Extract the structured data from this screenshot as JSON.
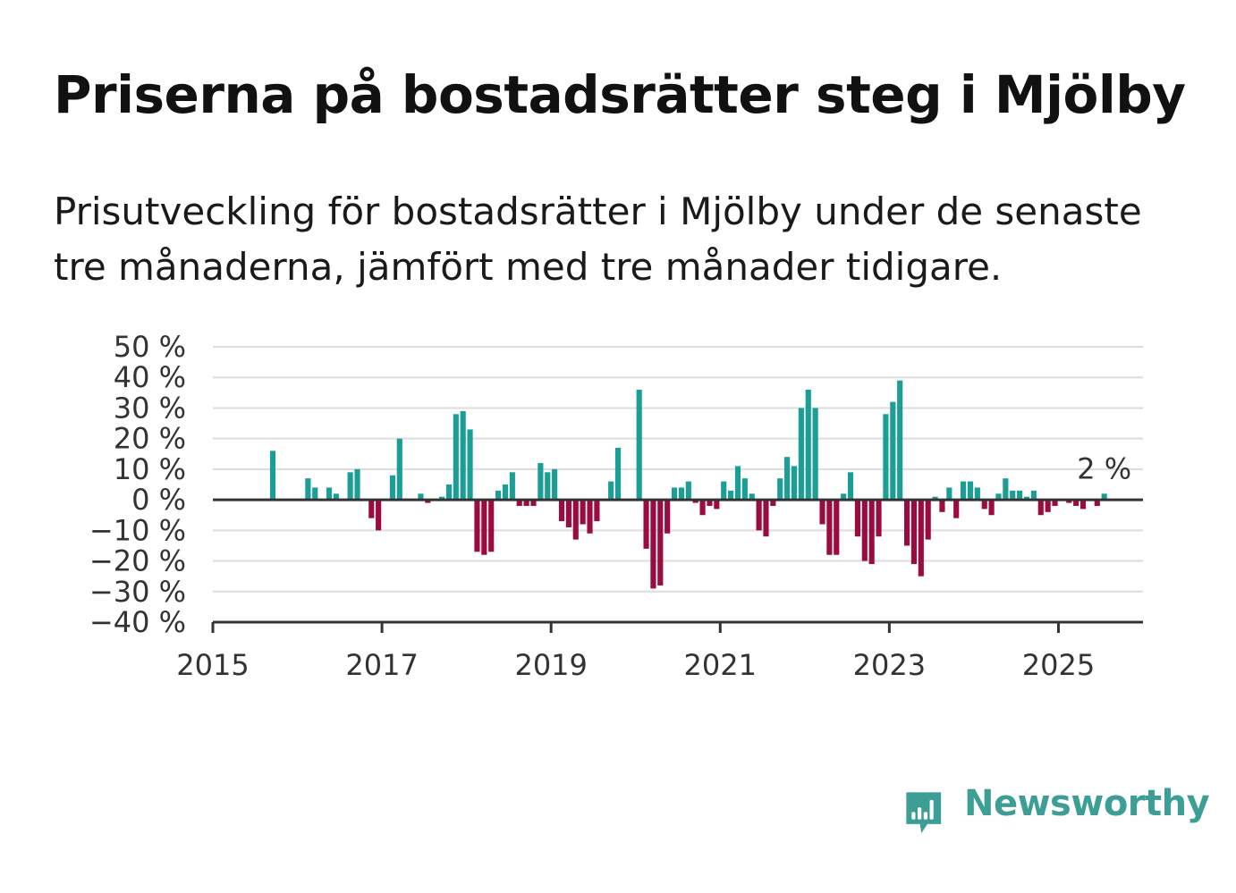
{
  "title": "Priserna på bostadsrätter steg i Mjölby",
  "subtitle": "Prisutveckling för bostadsrätter i Mjölby under de senaste tre månaderna, jämfört med tre månader tidigare.",
  "brand": {
    "name": "Newsworthy",
    "color": "#3d9e96",
    "icon": "bar-chart-speech-bubble-icon"
  },
  "chart_data": {
    "type": "bar",
    "y_unit": "%",
    "ylim": [
      -40,
      50
    ],
    "yticks": [
      50,
      40,
      30,
      20,
      10,
      0,
      -10,
      -20,
      -30,
      -40
    ],
    "ytick_labels": [
      "50 %",
      "40 %",
      "30 %",
      "20 %",
      "10 %",
      "0 %",
      "−10 %",
      "−20 %",
      "−30 %",
      "−40 %"
    ],
    "xlim": [
      "2015-01",
      "2026-01"
    ],
    "xticks": [
      "2015",
      "2017",
      "2019",
      "2021",
      "2023",
      "2025"
    ],
    "grid": true,
    "positive_color": "#1a9e96",
    "negative_color": "#9a0b3f",
    "annotation": {
      "text": "2 %",
      "month": "2025-07"
    },
    "series": [
      {
        "month": "2015-09",
        "value": 16
      },
      {
        "month": "2016-02",
        "value": 7
      },
      {
        "month": "2016-03",
        "value": 4
      },
      {
        "month": "2016-05",
        "value": 4
      },
      {
        "month": "2016-06",
        "value": 2
      },
      {
        "month": "2016-08",
        "value": 9
      },
      {
        "month": "2016-09",
        "value": 10
      },
      {
        "month": "2016-11",
        "value": -6
      },
      {
        "month": "2016-12",
        "value": -10
      },
      {
        "month": "2017-02",
        "value": 8
      },
      {
        "month": "2017-03",
        "value": 20
      },
      {
        "month": "2017-06",
        "value": 2
      },
      {
        "month": "2017-07",
        "value": -1
      },
      {
        "month": "2017-09",
        "value": 1
      },
      {
        "month": "2017-10",
        "value": 5
      },
      {
        "month": "2017-11",
        "value": 28
      },
      {
        "month": "2017-12",
        "value": 29
      },
      {
        "month": "2018-01",
        "value": 23
      },
      {
        "month": "2018-02",
        "value": -17
      },
      {
        "month": "2018-03",
        "value": -18
      },
      {
        "month": "2018-04",
        "value": -17
      },
      {
        "month": "2018-05",
        "value": 3
      },
      {
        "month": "2018-06",
        "value": 5
      },
      {
        "month": "2018-07",
        "value": 9
      },
      {
        "month": "2018-08",
        "value": -2
      },
      {
        "month": "2018-09",
        "value": -2
      },
      {
        "month": "2018-10",
        "value": -2
      },
      {
        "month": "2018-11",
        "value": 12
      },
      {
        "month": "2018-12",
        "value": 9
      },
      {
        "month": "2019-01",
        "value": 10
      },
      {
        "month": "2019-02",
        "value": -7
      },
      {
        "month": "2019-03",
        "value": -9
      },
      {
        "month": "2019-04",
        "value": -13
      },
      {
        "month": "2019-05",
        "value": -8
      },
      {
        "month": "2019-06",
        "value": -11
      },
      {
        "month": "2019-07",
        "value": -7
      },
      {
        "month": "2019-08",
        "value": 0
      },
      {
        "month": "2019-09",
        "value": 6
      },
      {
        "month": "2019-10",
        "value": 17
      },
      {
        "month": "2020-01",
        "value": 36
      },
      {
        "month": "2020-02",
        "value": -16
      },
      {
        "month": "2020-03",
        "value": -29
      },
      {
        "month": "2020-04",
        "value": -28
      },
      {
        "month": "2020-05",
        "value": -11
      },
      {
        "month": "2020-06",
        "value": 4
      },
      {
        "month": "2020-07",
        "value": 4
      },
      {
        "month": "2020-08",
        "value": 6
      },
      {
        "month": "2020-09",
        "value": -1
      },
      {
        "month": "2020-10",
        "value": -5
      },
      {
        "month": "2020-11",
        "value": -2
      },
      {
        "month": "2020-12",
        "value": -3
      },
      {
        "month": "2021-01",
        "value": 6
      },
      {
        "month": "2021-02",
        "value": 3
      },
      {
        "month": "2021-03",
        "value": 11
      },
      {
        "month": "2021-04",
        "value": 7
      },
      {
        "month": "2021-05",
        "value": 2
      },
      {
        "month": "2021-06",
        "value": -10
      },
      {
        "month": "2021-07",
        "value": -12
      },
      {
        "month": "2021-08",
        "value": -2
      },
      {
        "month": "2021-09",
        "value": 7
      },
      {
        "month": "2021-10",
        "value": 14
      },
      {
        "month": "2021-11",
        "value": 11
      },
      {
        "month": "2021-12",
        "value": 30
      },
      {
        "month": "2022-01",
        "value": 36
      },
      {
        "month": "2022-02",
        "value": 30
      },
      {
        "month": "2022-03",
        "value": -8
      },
      {
        "month": "2022-04",
        "value": -18
      },
      {
        "month": "2022-05",
        "value": -18
      },
      {
        "month": "2022-06",
        "value": 2
      },
      {
        "month": "2022-07",
        "value": 9
      },
      {
        "month": "2022-08",
        "value": -12
      },
      {
        "month": "2022-09",
        "value": -20
      },
      {
        "month": "2022-10",
        "value": -21
      },
      {
        "month": "2022-11",
        "value": -12
      },
      {
        "month": "2022-12",
        "value": 28
      },
      {
        "month": "2023-01",
        "value": 32
      },
      {
        "month": "2023-02",
        "value": 39
      },
      {
        "month": "2023-03",
        "value": -15
      },
      {
        "month": "2023-04",
        "value": -21
      },
      {
        "month": "2023-05",
        "value": -25
      },
      {
        "month": "2023-06",
        "value": -13
      },
      {
        "month": "2023-07",
        "value": 1
      },
      {
        "month": "2023-08",
        "value": -4
      },
      {
        "month": "2023-09",
        "value": 4
      },
      {
        "month": "2023-10",
        "value": -6
      },
      {
        "month": "2023-11",
        "value": 6
      },
      {
        "month": "2023-12",
        "value": 6
      },
      {
        "month": "2024-01",
        "value": 4
      },
      {
        "month": "2024-02",
        "value": -3
      },
      {
        "month": "2024-03",
        "value": -5
      },
      {
        "month": "2024-04",
        "value": 2
      },
      {
        "month": "2024-05",
        "value": 7
      },
      {
        "month": "2024-06",
        "value": 3
      },
      {
        "month": "2024-07",
        "value": 3
      },
      {
        "month": "2024-08",
        "value": 1
      },
      {
        "month": "2024-09",
        "value": 3
      },
      {
        "month": "2024-10",
        "value": -5
      },
      {
        "month": "2024-11",
        "value": -4
      },
      {
        "month": "2024-12",
        "value": -2
      },
      {
        "month": "2025-02",
        "value": -1
      },
      {
        "month": "2025-03",
        "value": -2
      },
      {
        "month": "2025-04",
        "value": -3
      },
      {
        "month": "2025-06",
        "value": -2
      },
      {
        "month": "2025-07",
        "value": 2
      }
    ]
  }
}
